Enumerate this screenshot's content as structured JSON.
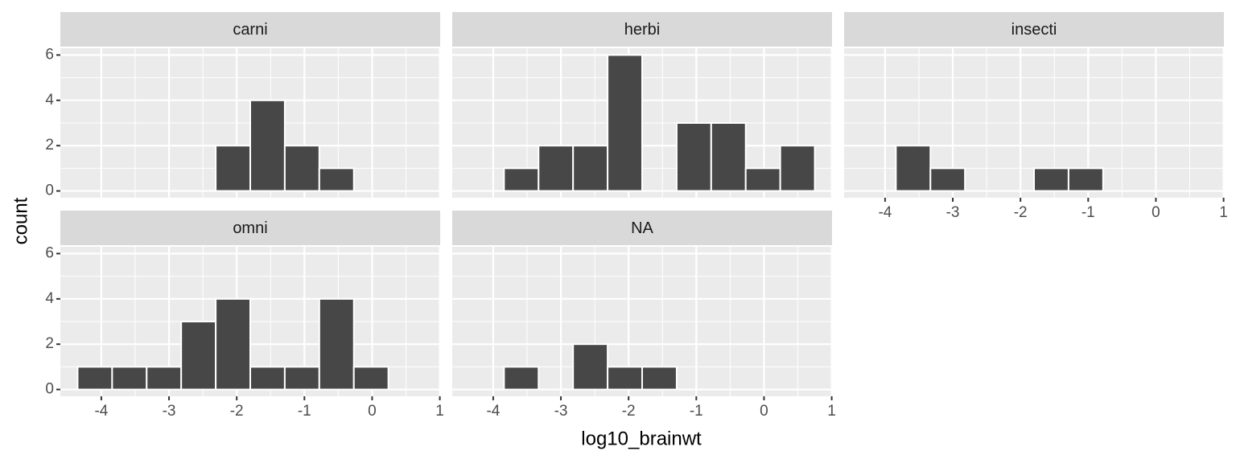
{
  "chart_data": {
    "type": "histogram",
    "xlabel": "log10_brainwt",
    "ylabel": "count",
    "bins": [
      -4.35,
      -3.84,
      -3.33,
      -2.82,
      -2.31,
      -1.8,
      -1.29,
      -0.78,
      -0.27,
      0.24,
      0.75
    ],
    "xlim": [
      -4.605,
      1.005
    ],
    "xticks": [
      -4,
      -3,
      -2,
      -1,
      0,
      1
    ],
    "ylim": [
      -0.3,
      6.3
    ],
    "yticks": [
      0,
      2,
      4,
      6
    ],
    "grid": true,
    "color": "#474747",
    "facets": [
      {
        "title": "carni",
        "values": [
          0,
          0,
          0,
          0,
          2,
          4,
          2,
          1,
          0,
          0
        ]
      },
      {
        "title": "herbi",
        "values": [
          0,
          1,
          2,
          2,
          6,
          0,
          3,
          3,
          1,
          2
        ]
      },
      {
        "title": "insecti",
        "values": [
          0,
          2,
          1,
          0,
          0,
          1,
          1,
          0,
          0,
          0
        ]
      },
      {
        "title": "omni",
        "values": [
          1,
          1,
          1,
          3,
          4,
          1,
          1,
          4,
          1,
          0
        ]
      },
      {
        "title": "NA",
        "values": [
          0,
          1,
          0,
          2,
          1,
          1,
          0,
          0,
          0,
          0
        ]
      }
    ]
  }
}
